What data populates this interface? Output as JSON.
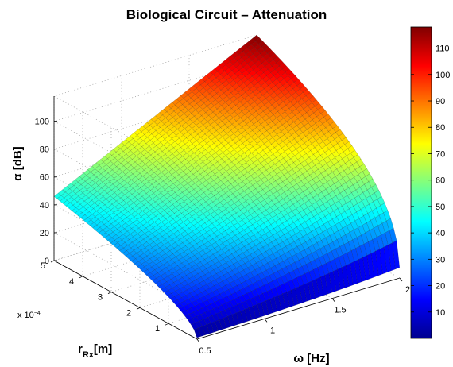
{
  "chart_data": {
    "type": "surface",
    "title": "Biological Circuit – Attenuation",
    "x_axis": {
      "label": "ω [Hz]",
      "range": [
        0.5,
        2
      ],
      "ticks": [
        "0.5",
        "1",
        "1.5",
        "2"
      ]
    },
    "y_axis": {
      "label_main": "r",
      "label_sub": "Rx",
      "label_unit": "[m]",
      "range": [
        0,
        0.0005
      ],
      "ticks": [
        "1",
        "2",
        "3",
        "4",
        "5"
      ],
      "exponent_label": "x 10",
      "exponent_power": "−4"
    },
    "z_axis": {
      "label": "α [dB]",
      "range": [
        0,
        118
      ],
      "ticks": [
        "0",
        "20",
        "40",
        "60",
        "80",
        "100"
      ]
    },
    "colorbar": {
      "colormap": "jet",
      "range": [
        0,
        118
      ],
      "ticks": [
        "10",
        "20",
        "30",
        "40",
        "50",
        "60",
        "70",
        "80",
        "90",
        "100",
        "110"
      ]
    },
    "surface_samples": {
      "description_of_fields": "alpha in dB at selected (omega, r_Rx) corners read from the plot",
      "points": [
        {
          "omega": 0.5,
          "r_Rx": 1e-05,
          "alpha": 1
        },
        {
          "omega": 0.5,
          "r_Rx": 0.0005,
          "alpha": 46
        },
        {
          "omega": 2.0,
          "r_Rx": 1e-05,
          "alpha": 10
        },
        {
          "omega": 2.0,
          "r_Rx": 0.0005,
          "alpha": 118
        }
      ]
    },
    "grid": true,
    "legend": "none"
  }
}
